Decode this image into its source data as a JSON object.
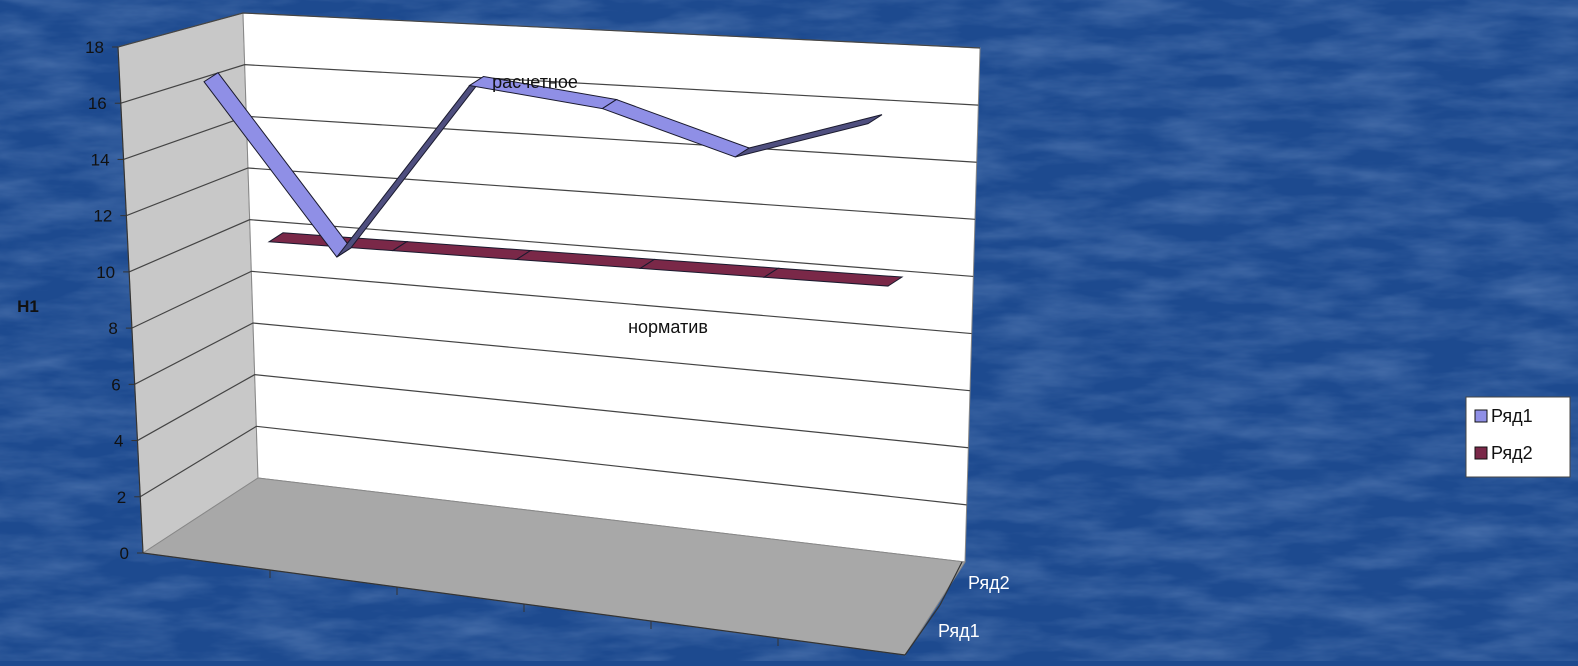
{
  "colors": {
    "background": "#1d4a8f",
    "series1": "#8f8fe6",
    "series2": "#7a2848",
    "wall": "#ffffff",
    "side_wall": "#c8c8c8",
    "floor": "#a8a8a8"
  },
  "chart_data": {
    "type": "line",
    "variant": "3d-ribbon",
    "title": "",
    "ylabel": "Н1",
    "xlabel": "",
    "ylim": [
      0,
      18
    ],
    "y_ticks": [
      "0",
      "2",
      "4",
      "6",
      "8",
      "10",
      "12",
      "14",
      "16",
      "18"
    ],
    "depth_labels": [
      "Ряд1",
      "Ряд2"
    ],
    "grid": true,
    "legend": "right",
    "series": [
      {
        "name": "Ряд1",
        "legend_label": "Ряд1",
        "annotation": "расчетное",
        "color": "#8f8fe6",
        "values": [
          16.5,
          10.2,
          16.2,
          15.3,
          13.5,
          14.6
        ]
      },
      {
        "name": "Ряд2",
        "legend_label": "Ряд2",
        "annotation": "норматив",
        "color": "#7a2848",
        "values": [
          11,
          11,
          11,
          11,
          11,
          11
        ]
      }
    ]
  }
}
